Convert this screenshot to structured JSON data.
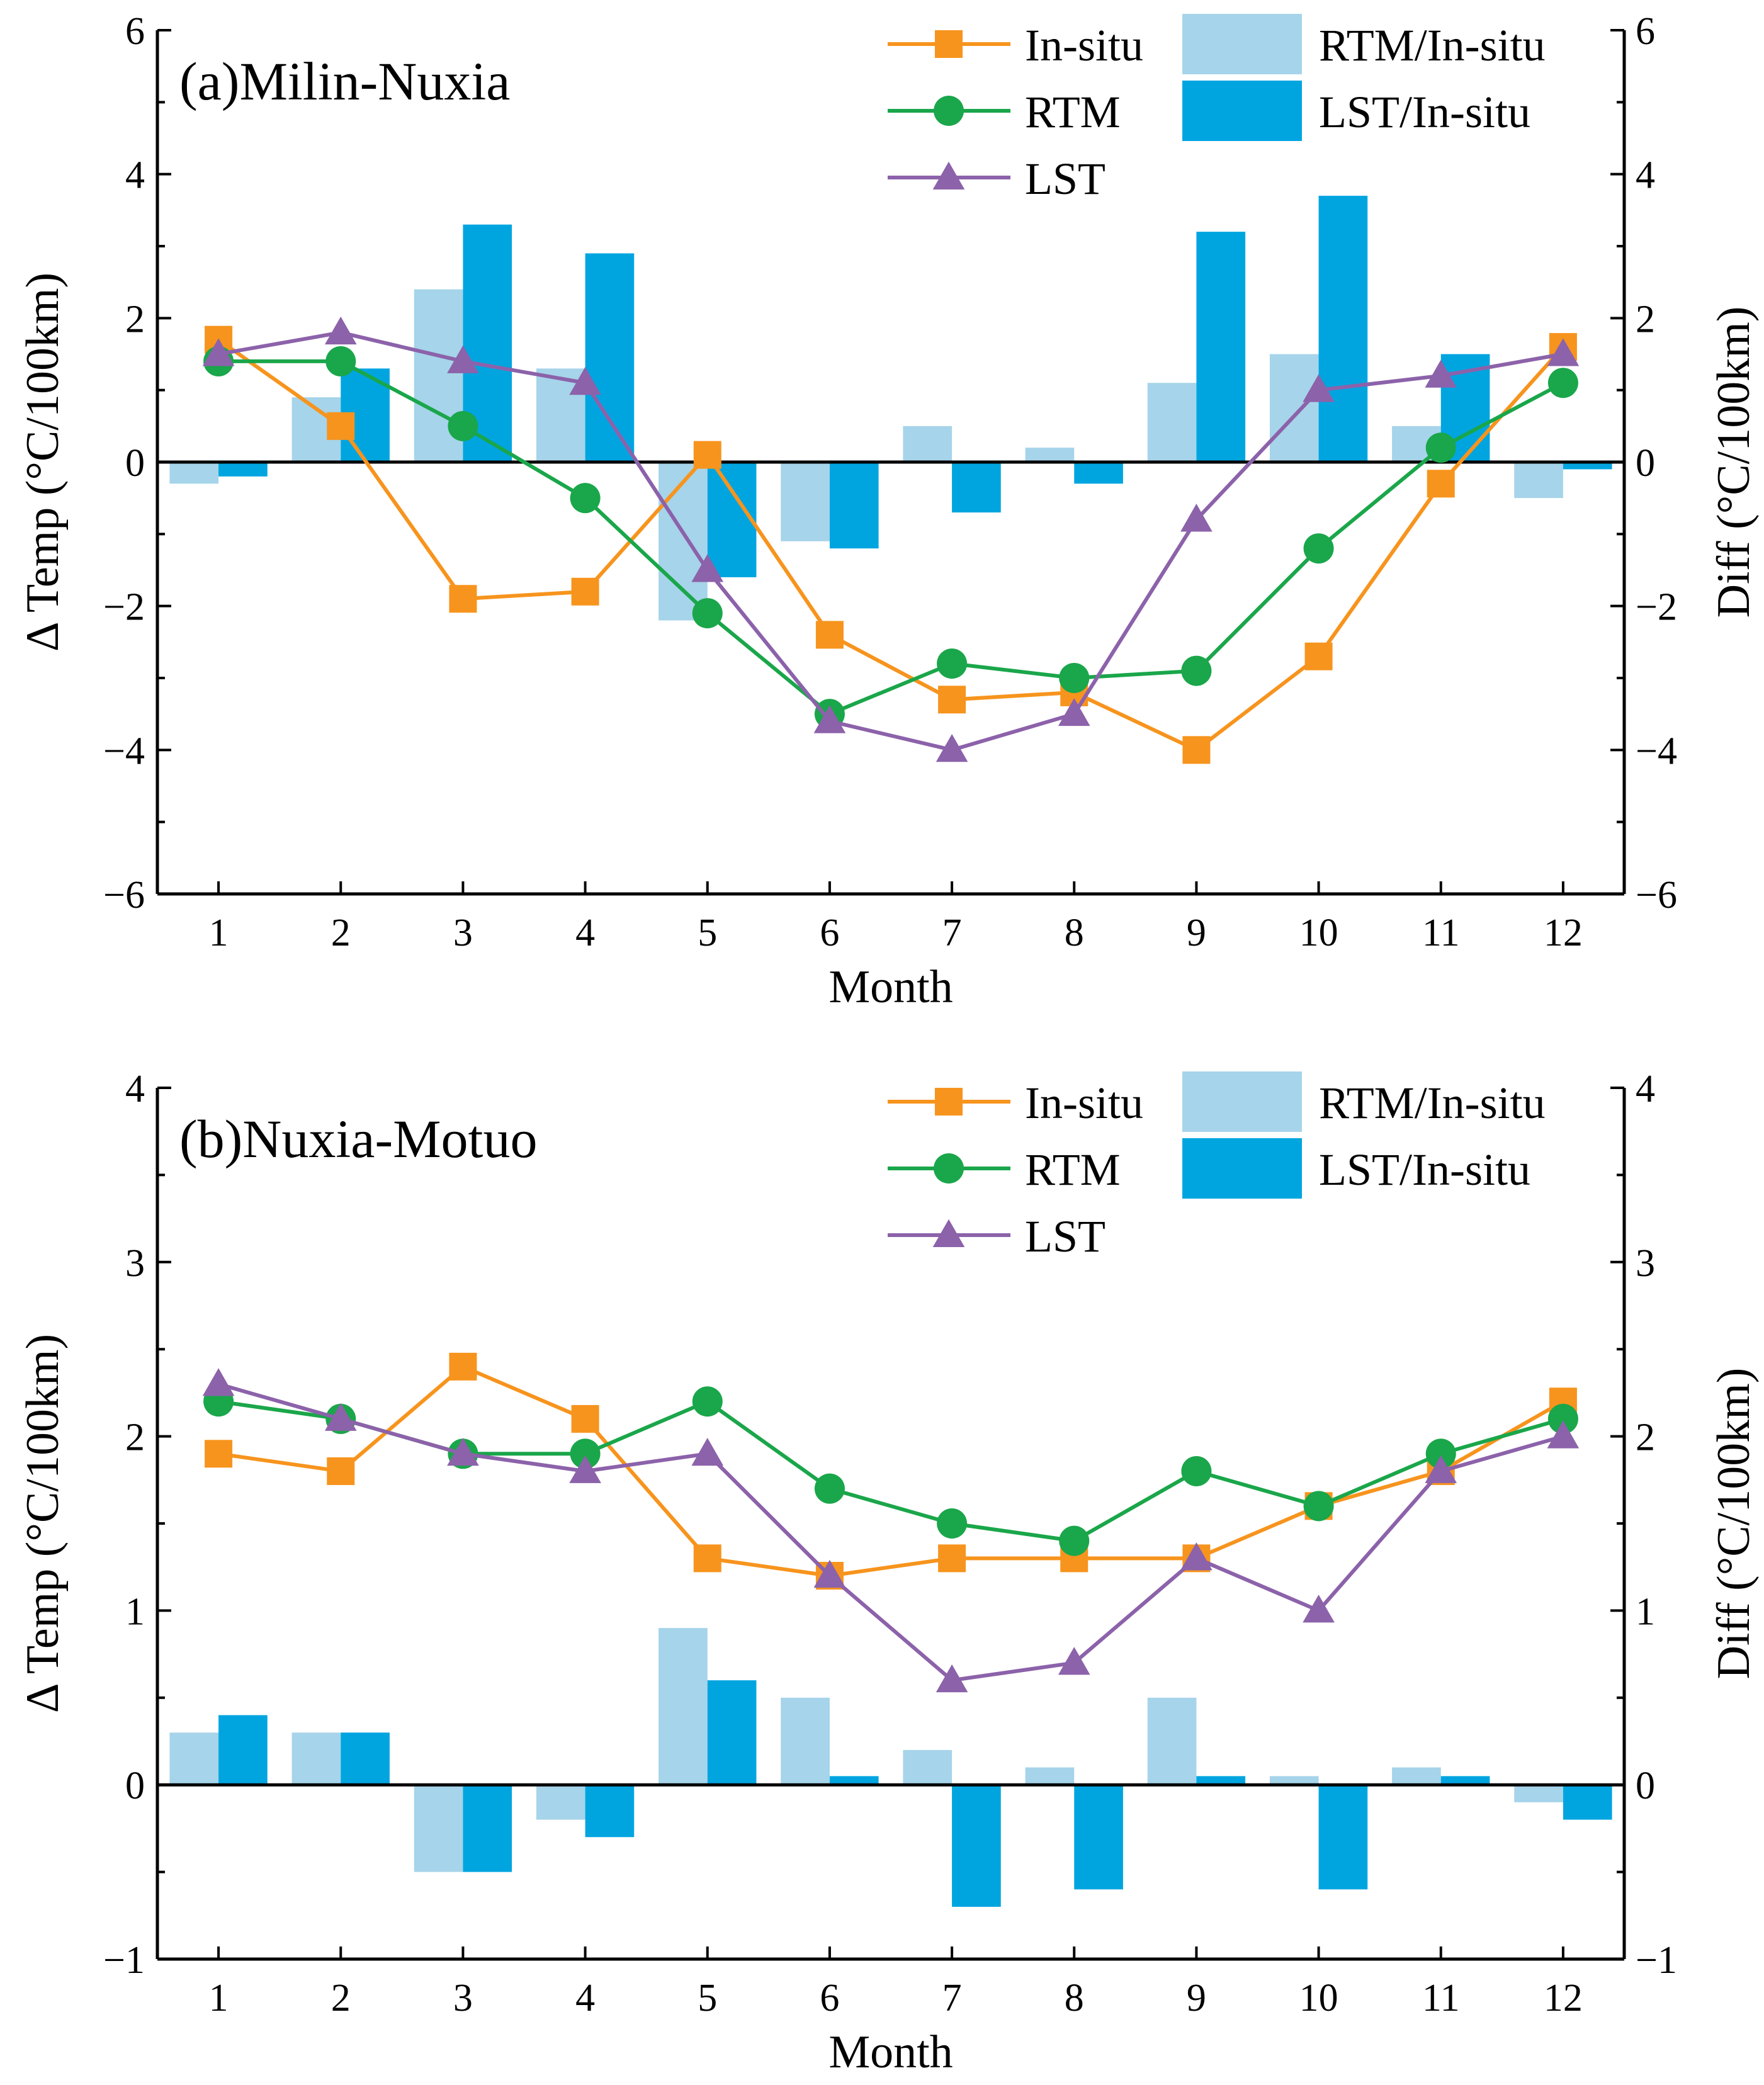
{
  "chart_data": [
    {
      "type": "bar+line",
      "title": "(a)Milin-Nuxia",
      "xlabel": "Month",
      "ylabel_left": "Δ Temp (°C/100km)",
      "ylabel_right": "Diff (°C/100km)",
      "ylim": [
        -6,
        6
      ],
      "yticks": [
        -6,
        -4,
        -2,
        0,
        2,
        4,
        6
      ],
      "ytick_labels": [
        "−6",
        "−4",
        "−2",
        "0",
        "2",
        "4",
        "6"
      ],
      "categories": [
        "1",
        "2",
        "3",
        "4",
        "5",
        "6",
        "7",
        "8",
        "9",
        "10",
        "11",
        "12"
      ],
      "line_series": [
        {
          "name": "In-situ",
          "color": "#f7941d",
          "marker": "square",
          "values": [
            1.7,
            0.5,
            -1.9,
            -1.8,
            0.1,
            -2.4,
            -3.3,
            -3.2,
            -4.0,
            -2.7,
            -0.3,
            1.6
          ]
        },
        {
          "name": "RTM",
          "color": "#1aa64a",
          "marker": "circle",
          "values": [
            1.4,
            1.4,
            0.5,
            -0.5,
            -2.1,
            -3.5,
            -2.8,
            -3.0,
            -2.9,
            -1.2,
            0.2,
            1.1
          ]
        },
        {
          "name": "LST",
          "color": "#8c62aa",
          "marker": "triangle",
          "values": [
            1.5,
            1.8,
            1.4,
            1.1,
            -1.5,
            -3.6,
            -4.0,
            -3.5,
            -0.8,
            1.0,
            1.2,
            1.5
          ]
        }
      ],
      "bar_series": [
        {
          "name": "RTM/In-situ",
          "color": "#a6d4ea",
          "values": [
            -0.3,
            0.9,
            2.4,
            1.3,
            -2.2,
            -1.1,
            0.5,
            0.2,
            1.1,
            1.5,
            0.5,
            -0.5
          ]
        },
        {
          "name": "LST/In-situ",
          "color": "#00a5e0",
          "values": [
            -0.2,
            1.3,
            3.3,
            2.9,
            -1.6,
            -1.2,
            -0.7,
            -0.3,
            3.2,
            3.7,
            1.5,
            -0.1
          ]
        }
      ],
      "legend_position": "top-right"
    },
    {
      "type": "bar+line",
      "title": "(b)Nuxia-Motuo",
      "xlabel": "Month",
      "ylabel_left": "Δ Temp (°C/100km)",
      "ylabel_right": "Diff (°C/100km)",
      "ylim": [
        -1,
        4
      ],
      "yticks": [
        -1,
        0,
        1,
        2,
        3,
        4
      ],
      "ytick_labels": [
        "−1",
        "0",
        "1",
        "2",
        "3",
        "4"
      ],
      "categories": [
        "1",
        "2",
        "3",
        "4",
        "5",
        "6",
        "7",
        "8",
        "9",
        "10",
        "11",
        "12"
      ],
      "line_series": [
        {
          "name": "In-situ",
          "color": "#f7941d",
          "marker": "square",
          "values": [
            1.9,
            1.8,
            2.4,
            2.1,
            1.3,
            1.2,
            1.3,
            1.3,
            1.3,
            1.6,
            1.8,
            2.2
          ]
        },
        {
          "name": "RTM",
          "color": "#1aa64a",
          "marker": "circle",
          "values": [
            2.2,
            2.1,
            1.9,
            1.9,
            2.2,
            1.7,
            1.5,
            1.4,
            1.8,
            1.6,
            1.9,
            2.1
          ]
        },
        {
          "name": "LST",
          "color": "#8c62aa",
          "marker": "triangle",
          "values": [
            2.3,
            2.1,
            1.9,
            1.8,
            1.9,
            1.2,
            0.6,
            0.7,
            1.3,
            1.0,
            1.8,
            2.0
          ]
        }
      ],
      "bar_series": [
        {
          "name": "RTM/In-situ",
          "color": "#a6d4ea",
          "values": [
            0.3,
            0.3,
            -0.5,
            -0.2,
            0.9,
            0.5,
            0.2,
            0.1,
            0.5,
            0.05,
            0.1,
            -0.1
          ]
        },
        {
          "name": "LST/In-situ",
          "color": "#00a5e0",
          "values": [
            0.4,
            0.3,
            -0.5,
            -0.3,
            0.6,
            0.05,
            -0.7,
            -0.6,
            0.05,
            -0.6,
            0.05,
            -0.2
          ]
        }
      ],
      "legend_position": "top-right"
    }
  ]
}
